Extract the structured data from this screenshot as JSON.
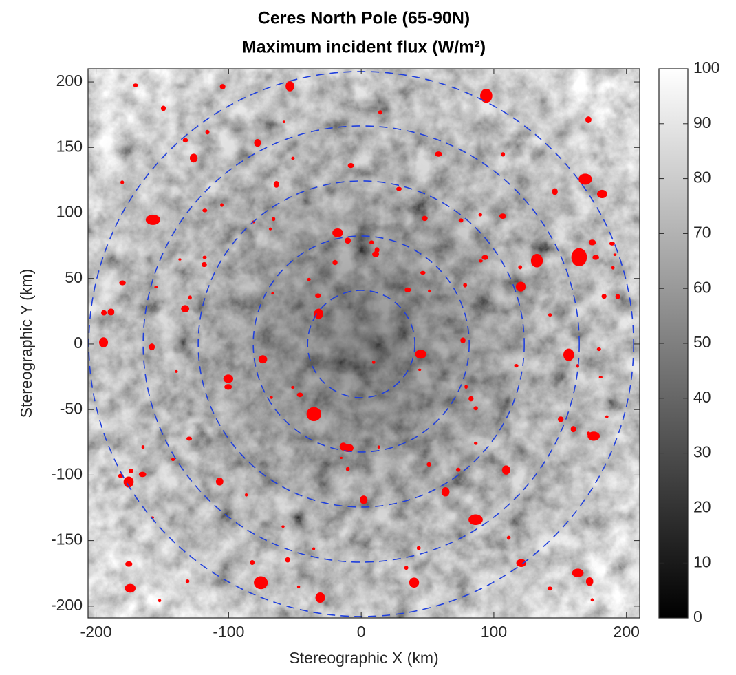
{
  "chart_data": {
    "type": "image",
    "title": [
      "Ceres North Pole (65-90N)",
      "Maximum incident flux (W/m²)"
    ],
    "xlabel": "Stereographic X (km)",
    "ylabel": "Stereographic Y (km)",
    "xlim": [
      -206,
      210
    ],
    "ylim": [
      -209,
      210
    ],
    "xticks": [
      -200,
      -100,
      0,
      100,
      200
    ],
    "yticks": [
      -200,
      -150,
      -100,
      -50,
      0,
      50,
      100,
      150,
      200
    ],
    "colormap": "gray",
    "colorbar": {
      "clim": [
        0,
        100
      ],
      "ticks": [
        0,
        10,
        20,
        30,
        40,
        50,
        60,
        70,
        80,
        90,
        100
      ]
    },
    "overlay_color": "#ff0000",
    "circle_color": "#1f3fdc"
  }
}
